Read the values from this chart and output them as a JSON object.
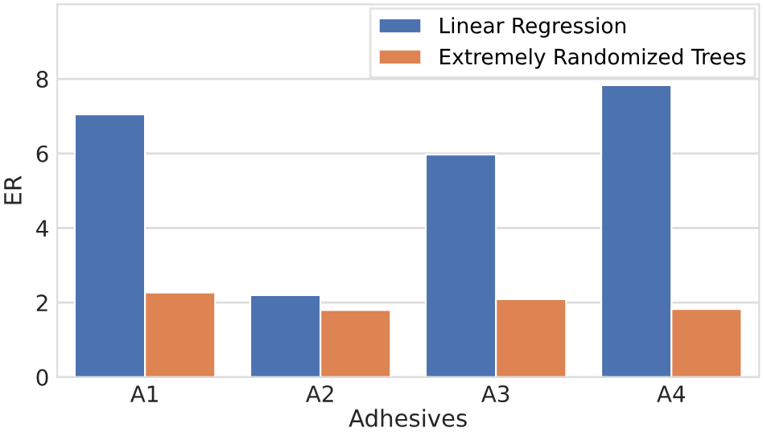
{
  "chart_data": {
    "type": "bar",
    "xlabel": "Adhesives",
    "ylabel": "ER",
    "categories": [
      "A1",
      "A2",
      "A3",
      "A4"
    ],
    "series": [
      {
        "name": "Linear Regression",
        "color": "#4c72b0",
        "values": [
          7.05,
          2.2,
          5.97,
          7.83
        ]
      },
      {
        "name": "Extremely Randomized Trees",
        "color": "#dd8452",
        "values": [
          2.27,
          1.8,
          2.09,
          1.83
        ]
      }
    ],
    "ylim": [
      0,
      10
    ],
    "yticks": [
      0,
      2,
      4,
      6,
      8
    ],
    "grid": "y",
    "legend": "top right"
  }
}
